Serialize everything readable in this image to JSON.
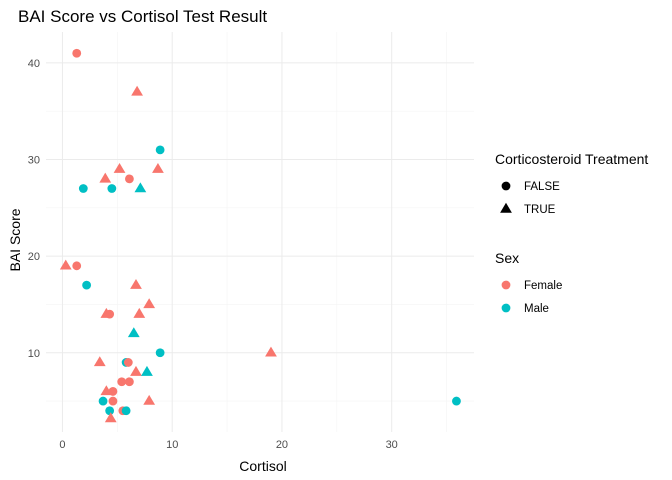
{
  "chart_data": {
    "type": "scatter",
    "title": "BAI Score vs Cortisol Test Result",
    "xlabel": "Cortisol",
    "ylabel": "BAI Score",
    "xlim": [
      -1.5,
      37.5
    ],
    "ylim": [
      1.8,
      43.2
    ],
    "x_ticks": [
      0,
      10,
      20,
      30
    ],
    "y_ticks": [
      10,
      20,
      30,
      40
    ],
    "grid": true,
    "legend_position": "right",
    "legends": [
      {
        "title": "Corticosteroid Treatment",
        "key": "treatment",
        "entries": [
          {
            "value": "FALSE",
            "label": "FALSE",
            "shape": "circle"
          },
          {
            "value": "TRUE",
            "label": "TRUE",
            "shape": "triangle"
          }
        ]
      },
      {
        "title": "Sex",
        "key": "sex",
        "entries": [
          {
            "value": "Female",
            "label": "Female",
            "color": "#F8766D"
          },
          {
            "value": "Male",
            "label": "Male",
            "color": "#00BFC4"
          }
        ]
      }
    ],
    "points": [
      {
        "x": 1.3,
        "y": 41,
        "sex": "Female",
        "treatment": "FALSE"
      },
      {
        "x": 6.8,
        "y": 37,
        "sex": "Female",
        "treatment": "TRUE"
      },
      {
        "x": 8.9,
        "y": 31,
        "sex": "Male",
        "treatment": "FALSE"
      },
      {
        "x": 5.2,
        "y": 29,
        "sex": "Female",
        "treatment": "TRUE"
      },
      {
        "x": 8.7,
        "y": 29,
        "sex": "Female",
        "treatment": "TRUE"
      },
      {
        "x": 3.9,
        "y": 28,
        "sex": "Female",
        "treatment": "TRUE"
      },
      {
        "x": 6.1,
        "y": 28,
        "sex": "Female",
        "treatment": "FALSE"
      },
      {
        "x": 1.9,
        "y": 27,
        "sex": "Male",
        "treatment": "FALSE"
      },
      {
        "x": 4.5,
        "y": 27,
        "sex": "Male",
        "treatment": "FALSE"
      },
      {
        "x": 7.1,
        "y": 27,
        "sex": "Male",
        "treatment": "TRUE"
      },
      {
        "x": 0.3,
        "y": 19,
        "sex": "Female",
        "treatment": "TRUE"
      },
      {
        "x": 1.3,
        "y": 19,
        "sex": "Female",
        "treatment": "FALSE"
      },
      {
        "x": 2.2,
        "y": 17,
        "sex": "Male",
        "treatment": "FALSE"
      },
      {
        "x": 6.7,
        "y": 17,
        "sex": "Female",
        "treatment": "TRUE"
      },
      {
        "x": 7.9,
        "y": 15,
        "sex": "Female",
        "treatment": "TRUE"
      },
      {
        "x": 4.0,
        "y": 14,
        "sex": "Female",
        "treatment": "TRUE"
      },
      {
        "x": 4.3,
        "y": 14,
        "sex": "Female",
        "treatment": "FALSE"
      },
      {
        "x": 7.0,
        "y": 14,
        "sex": "Female",
        "treatment": "TRUE"
      },
      {
        "x": 6.5,
        "y": 12,
        "sex": "Male",
        "treatment": "TRUE"
      },
      {
        "x": 8.9,
        "y": 10,
        "sex": "Male",
        "treatment": "FALSE"
      },
      {
        "x": 19.0,
        "y": 10,
        "sex": "Female",
        "treatment": "TRUE"
      },
      {
        "x": 3.4,
        "y": 9,
        "sex": "Female",
        "treatment": "TRUE"
      },
      {
        "x": 5.8,
        "y": 9,
        "sex": "Male",
        "treatment": "FALSE"
      },
      {
        "x": 6.0,
        "y": 9,
        "sex": "Female",
        "treatment": "FALSE"
      },
      {
        "x": 6.7,
        "y": 8,
        "sex": "Female",
        "treatment": "TRUE"
      },
      {
        "x": 7.7,
        "y": 8,
        "sex": "Male",
        "treatment": "TRUE"
      },
      {
        "x": 5.4,
        "y": 7,
        "sex": "Female",
        "treatment": "FALSE"
      },
      {
        "x": 6.1,
        "y": 7,
        "sex": "Female",
        "treatment": "FALSE"
      },
      {
        "x": 4.0,
        "y": 6,
        "sex": "Female",
        "treatment": "TRUE"
      },
      {
        "x": 4.6,
        "y": 6,
        "sex": "Female",
        "treatment": "FALSE"
      },
      {
        "x": 3.7,
        "y": 5,
        "sex": "Male",
        "treatment": "FALSE"
      },
      {
        "x": 4.6,
        "y": 5,
        "sex": "Female",
        "treatment": "FALSE"
      },
      {
        "x": 7.9,
        "y": 5,
        "sex": "Female",
        "treatment": "TRUE"
      },
      {
        "x": 35.9,
        "y": 5,
        "sex": "Male",
        "treatment": "FALSE"
      },
      {
        "x": 4.3,
        "y": 4,
        "sex": "Male",
        "treatment": "FALSE"
      },
      {
        "x": 5.5,
        "y": 4,
        "sex": "Female",
        "treatment": "FALSE"
      },
      {
        "x": 5.8,
        "y": 4,
        "sex": "Male",
        "treatment": "FALSE"
      },
      {
        "x": 4.4,
        "y": 3.2,
        "sex": "Female",
        "treatment": "TRUE"
      }
    ]
  }
}
